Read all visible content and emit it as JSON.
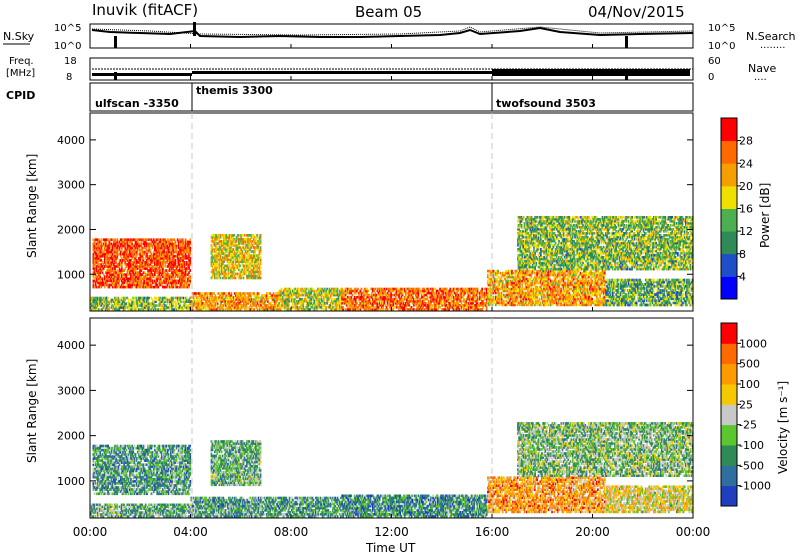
{
  "header": {
    "station": "Inuvik (fitACF)",
    "beam": "Beam 05",
    "date": "04/Nov/2015"
  },
  "noise_panel": {
    "left_label": "N.Sky",
    "right_label": "N.Search",
    "right_sub": "........",
    "ticks": [
      "10^5",
      "10^0"
    ],
    "right_ticks": [
      "10^5",
      "10^0"
    ]
  },
  "freq_panel": {
    "left_label_1": "Freq.",
    "left_label_2": "[MHz]",
    "right_label": "Nave",
    "right_sub": "....",
    "left_ticks": [
      "18",
      "8"
    ],
    "right_ticks": [
      "60",
      "0"
    ]
  },
  "cpid_panel": {
    "label": "CPID",
    "segments": [
      {
        "name": "ulfscan -3350",
        "start_h": 0.0,
        "end_h": 4.0
      },
      {
        "name": "themis 3300",
        "start_h": 4.0,
        "end_h": 16.0
      },
      {
        "name": "twofsound 3503",
        "start_h": 16.0,
        "end_h": 24.0
      }
    ]
  },
  "x_axis": {
    "label": "Time UT",
    "ticks": [
      "00:00",
      "04:00",
      "08:00",
      "12:00",
      "16:00",
      "20:00",
      "00:00"
    ]
  },
  "chart_data": [
    {
      "type": "heatmap",
      "name": "power",
      "xlabel": "Time UT",
      "ylabel": "Slant Range [km]",
      "xlim": [
        0,
        24
      ],
      "ylim": [
        180,
        4600
      ],
      "y_ticks": [
        1000,
        2000,
        3000,
        4000
      ],
      "colorbar": {
        "label": "Power [dB]",
        "ticks": [
          "4",
          "8",
          "12",
          "16",
          "20",
          "24",
          "28"
        ],
        "colors": [
          "#0000ff",
          "#1f4fc8",
          "#2e8b57",
          "#4caf50",
          "#f0e000",
          "#f5a000",
          "#ff6a00",
          "#ff0000"
        ]
      },
      "regions": [
        {
          "t0": 0.0,
          "t1": 4.0,
          "r0": 200,
          "r1": 500,
          "level": 0.45
        },
        {
          "t0": 0.1,
          "t1": 4.0,
          "r0": 700,
          "r1": 1800,
          "level": 0.85
        },
        {
          "t0": 4.0,
          "t1": 7.5,
          "r0": 200,
          "r1": 600,
          "level": 0.7
        },
        {
          "t0": 4.8,
          "t1": 6.8,
          "r0": 900,
          "r1": 1900,
          "level": 0.6
        },
        {
          "t0": 7.5,
          "t1": 10.0,
          "r0": 200,
          "r1": 700,
          "level": 0.55
        },
        {
          "t0": 10.0,
          "t1": 15.8,
          "r0": 200,
          "r1": 700,
          "level": 0.8
        },
        {
          "t0": 15.8,
          "t1": 20.5,
          "r0": 300,
          "r1": 1100,
          "level": 0.7
        },
        {
          "t0": 20.5,
          "t1": 24.0,
          "r0": 300,
          "r1": 900,
          "level": 0.4
        },
        {
          "t0": 17.0,
          "t1": 24.0,
          "r0": 1100,
          "r1": 2300,
          "level": 0.45
        }
      ]
    },
    {
      "type": "heatmap",
      "name": "velocity",
      "xlabel": "Time UT",
      "ylabel": "Slant Range [km]",
      "xlim": [
        0,
        24
      ],
      "ylim": [
        180,
        4600
      ],
      "y_ticks": [
        1000,
        2000,
        3000,
        4000
      ],
      "colorbar": {
        "label": "Velocity [m s⁻¹]",
        "ticks": [
          "1000",
          "500",
          "100",
          "25",
          "-25",
          "-100",
          "-500",
          "-1000"
        ],
        "colors": [
          "#1f3fbf",
          "#2e6fa0",
          "#2e8b57",
          "#5cc62e",
          "#c8c8c8",
          "#f5c800",
          "#ff9a00",
          "#ff6a00",
          "#ff0000"
        ]
      },
      "regions": [
        {
          "t0": 0.0,
          "t1": 4.0,
          "r0": 200,
          "r1": 500,
          "level": 0.35
        },
        {
          "t0": 0.1,
          "t1": 4.0,
          "r0": 700,
          "r1": 1800,
          "level": 0.3
        },
        {
          "t0": 4.0,
          "t1": 10.0,
          "r0": 200,
          "r1": 650,
          "level": 0.3
        },
        {
          "t0": 4.8,
          "t1": 6.8,
          "r0": 900,
          "r1": 1900,
          "level": 0.35
        },
        {
          "t0": 10.0,
          "t1": 15.8,
          "r0": 200,
          "r1": 700,
          "level": 0.25
        },
        {
          "t0": 15.8,
          "t1": 20.5,
          "r0": 300,
          "r1": 1100,
          "level": 0.72
        },
        {
          "t0": 20.5,
          "t1": 24.0,
          "r0": 300,
          "r1": 900,
          "level": 0.55
        },
        {
          "t0": 17.0,
          "t1": 24.0,
          "r0": 1100,
          "r1": 2300,
          "level": 0.4
        }
      ]
    }
  ]
}
